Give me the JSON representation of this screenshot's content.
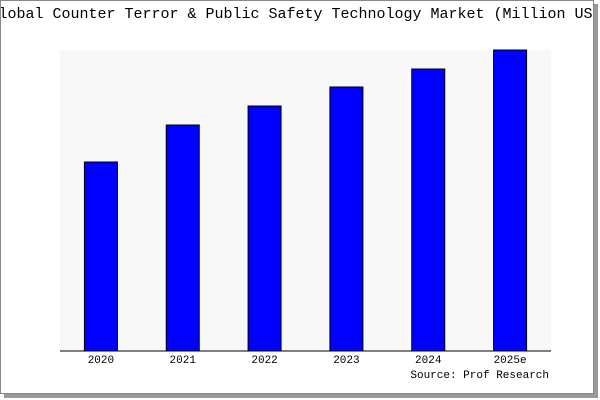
{
  "chart_data": {
    "type": "bar",
    "title": "Global Counter Terror & Public Safety Technology Market (Million USD)",
    "categories": [
      "2020",
      "2021",
      "2022",
      "2023",
      "2024",
      "2025e"
    ],
    "values": [
      189,
      226,
      245,
      264,
      282,
      301
    ],
    "color": "#0000ff",
    "ylim": [
      0,
      301
    ],
    "source": "Source: Prof Research"
  }
}
